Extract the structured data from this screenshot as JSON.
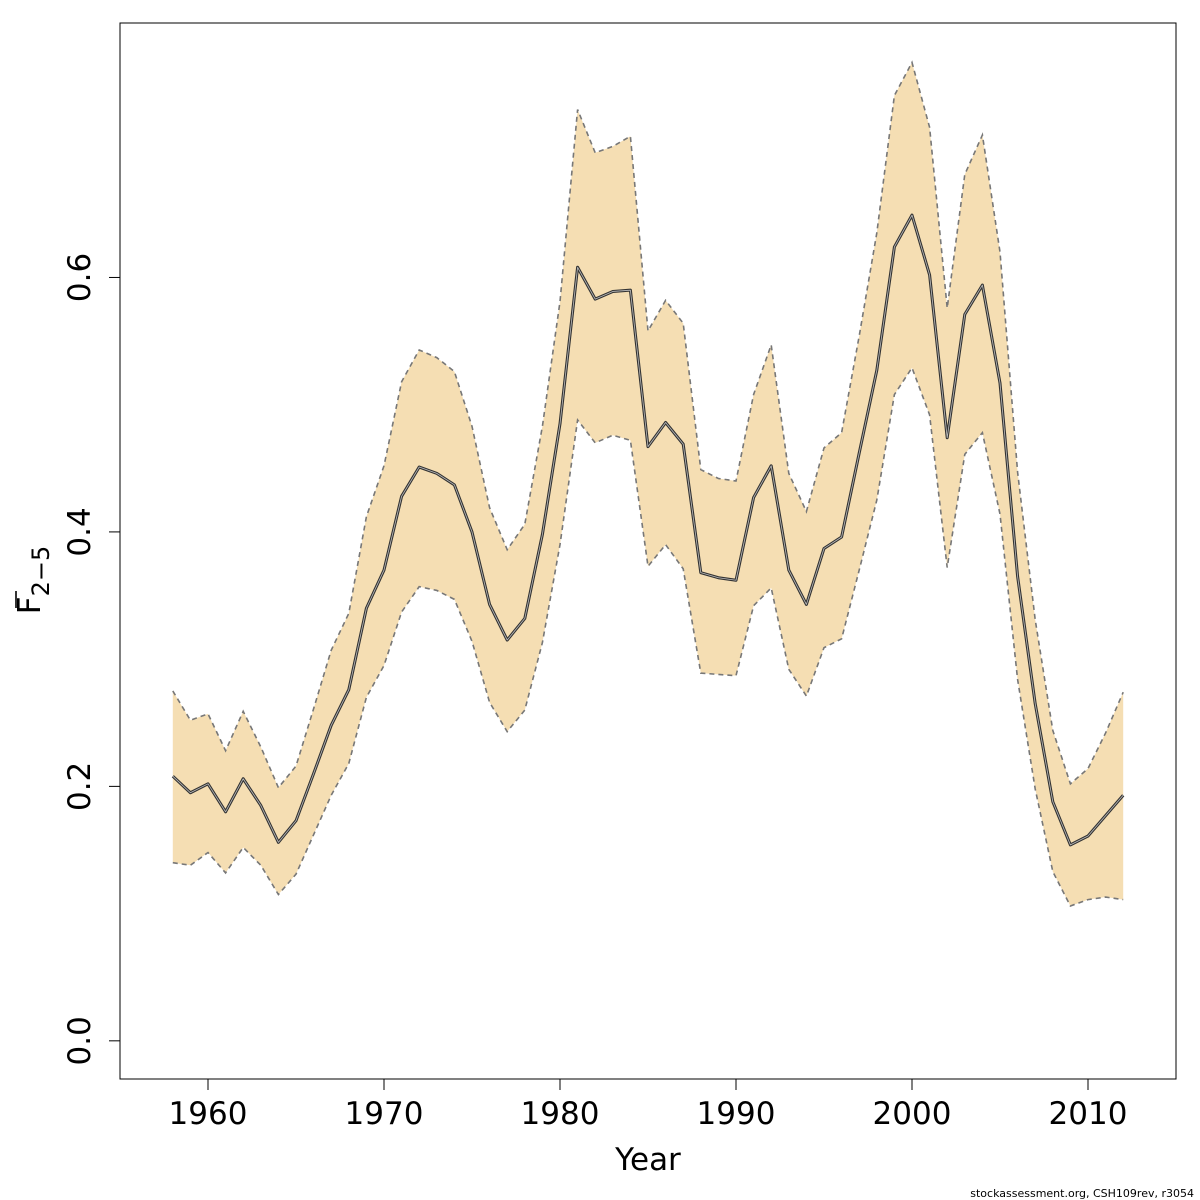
{
  "chart_data": {
    "type": "line",
    "xlabel": "Year",
    "ylabel": {
      "symbol": "F",
      "subscript": "2−5"
    },
    "footer": "stockassessment.org, CSH109rev, r3054",
    "xlim": [
      1955,
      2015
    ],
    "ylim": [
      -0.03,
      0.8
    ],
    "x_ticks": [
      1960,
      1970,
      1980,
      1990,
      2000,
      2010
    ],
    "y_ticks": [
      0.0,
      0.2,
      0.4,
      0.6
    ],
    "y_tick_labels": [
      "0.0",
      "0.2",
      "0.4",
      "0.6"
    ],
    "band_color": "#f5deb3",
    "line_color": "#333333",
    "bound_color": "#777777",
    "x": [
      1958,
      1959,
      1960,
      1961,
      1962,
      1963,
      1964,
      1965,
      1966,
      1967,
      1968,
      1969,
      1970,
      1971,
      1972,
      1973,
      1974,
      1975,
      1976,
      1977,
      1978,
      1979,
      1980,
      1981,
      1982,
      1983,
      1984,
      1985,
      1986,
      1987,
      1988,
      1989,
      1990,
      1991,
      1992,
      1993,
      1994,
      1995,
      1996,
      1997,
      1998,
      1999,
      2000,
      2001,
      2002,
      2003,
      2004,
      2005,
      2006,
      2007,
      2008,
      2009,
      2010,
      2011,
      2012
    ],
    "series": [
      {
        "role": "estimate",
        "values": [
          0.208,
          0.195,
          0.202,
          0.18,
          0.206,
          0.185,
          0.156,
          0.173,
          0.21,
          0.248,
          0.276,
          0.34,
          0.37,
          0.428,
          0.451,
          0.446,
          0.437,
          0.4,
          0.343,
          0.315,
          0.332,
          0.398,
          0.485,
          0.608,
          0.583,
          0.589,
          0.59,
          0.467,
          0.486,
          0.469,
          0.368,
          0.364,
          0.362,
          0.427,
          0.452,
          0.37,
          0.343,
          0.387,
          0.396,
          0.462,
          0.527,
          0.624,
          0.649,
          0.602,
          0.474,
          0.571,
          0.594,
          0.517,
          0.365,
          0.265,
          0.188,
          0.154,
          0.161,
          0.177,
          0.193
        ]
      },
      {
        "role": "upper",
        "values": [
          0.275,
          0.252,
          0.257,
          0.228,
          0.259,
          0.231,
          0.199,
          0.216,
          0.261,
          0.307,
          0.336,
          0.412,
          0.452,
          0.518,
          0.543,
          0.537,
          0.526,
          0.483,
          0.419,
          0.386,
          0.406,
          0.483,
          0.581,
          0.732,
          0.698,
          0.703,
          0.711,
          0.558,
          0.582,
          0.564,
          0.449,
          0.442,
          0.44,
          0.508,
          0.547,
          0.446,
          0.416,
          0.466,
          0.478,
          0.554,
          0.635,
          0.743,
          0.769,
          0.718,
          0.576,
          0.681,
          0.712,
          0.62,
          0.447,
          0.331,
          0.244,
          0.202,
          0.214,
          0.242,
          0.274
        ]
      },
      {
        "role": "lower",
        "values": [
          0.14,
          0.138,
          0.148,
          0.132,
          0.152,
          0.138,
          0.115,
          0.131,
          0.162,
          0.193,
          0.218,
          0.27,
          0.295,
          0.337,
          0.357,
          0.354,
          0.347,
          0.314,
          0.266,
          0.243,
          0.26,
          0.313,
          0.39,
          0.488,
          0.47,
          0.476,
          0.472,
          0.373,
          0.39,
          0.371,
          0.289,
          0.288,
          0.287,
          0.342,
          0.356,
          0.292,
          0.271,
          0.309,
          0.316,
          0.37,
          0.425,
          0.508,
          0.529,
          0.492,
          0.372,
          0.461,
          0.478,
          0.414,
          0.284,
          0.198,
          0.133,
          0.106,
          0.111,
          0.113,
          0.111
        ]
      }
    ]
  }
}
